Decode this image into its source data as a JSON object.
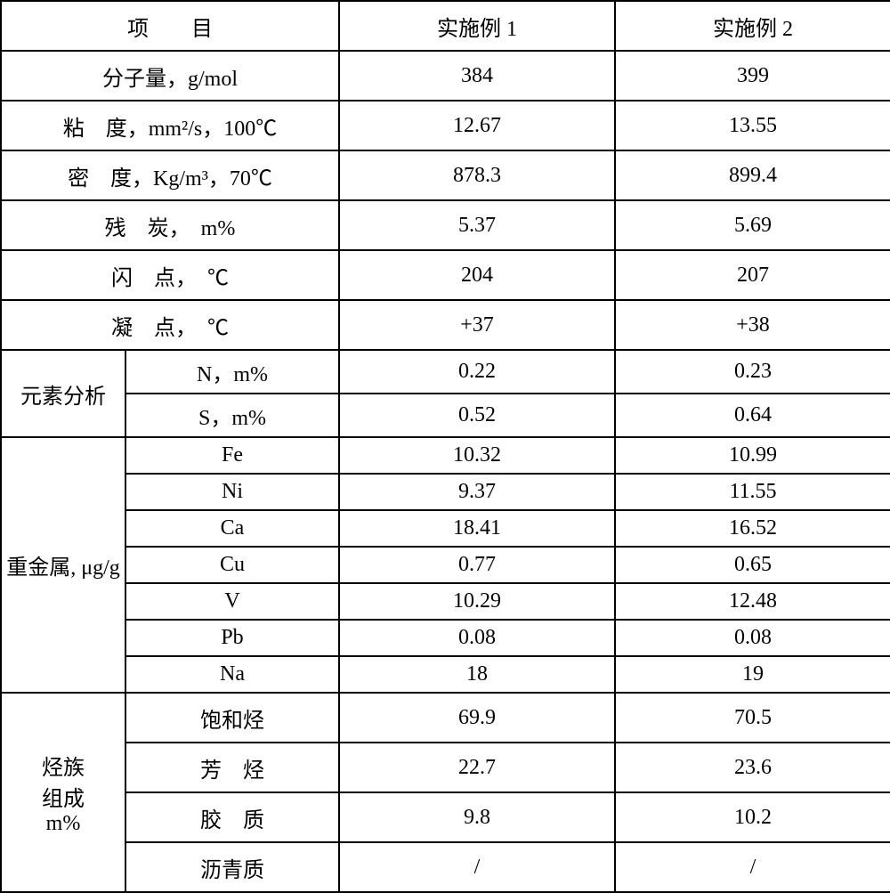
{
  "header": {
    "item": "项　　目",
    "ex1": "实施例 1",
    "ex2": "实施例 2"
  },
  "rows": {
    "mw": {
      "label": "分子量，g/mol",
      "v1": "384",
      "v2": "399"
    },
    "visc": {
      "label": "粘　度，mm²/s，100℃",
      "v1": "12.67",
      "v2": "13.55"
    },
    "dens": {
      "label": "密　度，Kg/m³，70℃",
      "v1": "878.3",
      "v2": "899.4"
    },
    "ccr": {
      "label": "残　炭，　m%",
      "v1": "5.37",
      "v2": "5.69"
    },
    "flash": {
      "label": "闪　点，　℃",
      "v1": "204",
      "v2": "207"
    },
    "pour": {
      "label": "凝　点，　℃",
      "v1": "+37",
      "v2": "+38"
    }
  },
  "elem": {
    "group": "元素分析",
    "n": {
      "label": "N，m%",
      "v1": "0.22",
      "v2": "0.23"
    },
    "s": {
      "label": "S，m%",
      "v1": "0.52",
      "v2": "0.64"
    }
  },
  "metal": {
    "group": "重金属, μg/g",
    "fe": {
      "label": "Fe",
      "v1": "10.32",
      "v2": "10.99"
    },
    "ni": {
      "label": "Ni",
      "v1": "9.37",
      "v2": "11.55"
    },
    "ca": {
      "label": "Ca",
      "v1": "18.41",
      "v2": "16.52"
    },
    "cu": {
      "label": "Cu",
      "v1": "0.77",
      "v2": "0.65"
    },
    "v": {
      "label": "V",
      "v1": "10.29",
      "v2": "12.48"
    },
    "pb": {
      "label": "Pb",
      "v1": "0.08",
      "v2": "0.08"
    },
    "na": {
      "label": "Na",
      "v1": "18",
      "v2": "19"
    }
  },
  "hc": {
    "group": "烃族\n组成\nm%",
    "sat": {
      "label": "饱和烃",
      "v1": "69.9",
      "v2": "70.5"
    },
    "arom": {
      "label": "芳　烃",
      "v1": "22.7",
      "v2": "23.6"
    },
    "resin": {
      "label": "胶　质",
      "v1": "9.8",
      "v2": "10.2"
    },
    "asph": {
      "label": "沥青质",
      "v1": "/",
      "v2": "/"
    }
  }
}
